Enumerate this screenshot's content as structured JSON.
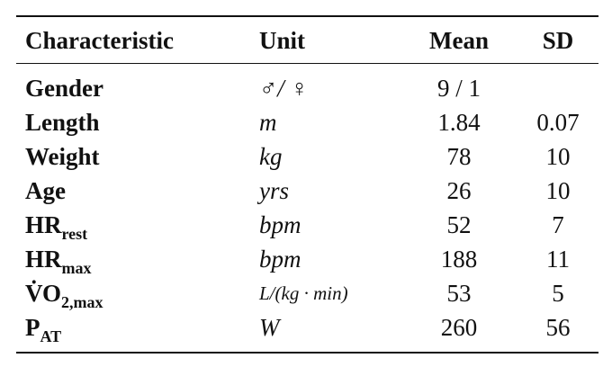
{
  "table": {
    "headers": [
      "Characteristic",
      "Unit",
      "Mean",
      "SD"
    ],
    "rows": [
      {
        "label": "Gender",
        "unit": "♂/ ♀",
        "mean": "9 / 1",
        "sd": null
      },
      {
        "label": "Length",
        "unit": "m",
        "mean": 1.84,
        "sd": 0.07
      },
      {
        "label": "Weight",
        "unit": "kg",
        "mean": 78,
        "sd": 10
      },
      {
        "label": "Age",
        "unit": "yrs",
        "mean": 26,
        "sd": 10
      },
      {
        "label": "HR",
        "sub": "rest",
        "unit": "bpm",
        "mean": 52,
        "sd": 7
      },
      {
        "label": "HR",
        "sub": "max",
        "unit": "bpm",
        "mean": 188,
        "sd": 11
      },
      {
        "label": "V̇O",
        "sub": "2,max",
        "unit": "L/(kg · min)",
        "mean": 53,
        "sd": 5
      },
      {
        "label": "P",
        "sub": "AT",
        "unit": "W",
        "mean": 260,
        "sd": 56
      }
    ]
  }
}
